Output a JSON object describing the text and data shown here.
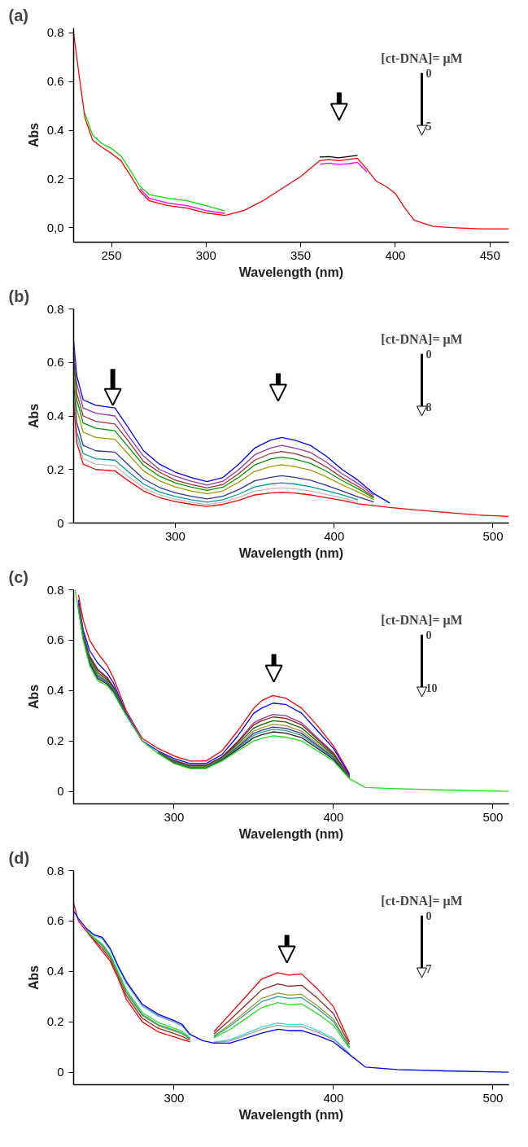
{
  "chart_data": [
    {
      "type": "line",
      "title": "(a)",
      "xlabel": "Wavelength (nm)",
      "ylabel": "Abs",
      "xlim": [
        230,
        460
      ],
      "ylim": [
        -0.06,
        0.82
      ],
      "xticks": [
        250,
        300,
        350,
        400,
        450
      ],
      "yticks": [
        {
          "value": 0,
          "label": "0,0"
        },
        0.2,
        0.4,
        0.6,
        0.8
      ],
      "grid": false,
      "marker": "none",
      "line_style": "solid",
      "annotations": [
        "[ct-DNA]= μM",
        "0",
        "5"
      ],
      "x": [
        230,
        233,
        236,
        240,
        245,
        250,
        255,
        260,
        265,
        270,
        280,
        290,
        300,
        310,
        320,
        330,
        340,
        350,
        360,
        365,
        370,
        375,
        380,
        385,
        390,
        395,
        400,
        405,
        410,
        420,
        430,
        445,
        460
      ],
      "series": [
        {
          "color": "#000000",
          "values": [
            null,
            null,
            null,
            null,
            null,
            null,
            null,
            null,
            null,
            null,
            null,
            null,
            null,
            null,
            null,
            null,
            null,
            null,
            0.29,
            0.292,
            0.287,
            0.292,
            0.297,
            null,
            null,
            null,
            null,
            null,
            null,
            null,
            null,
            null,
            null
          ]
        },
        {
          "color": "#ff00ff",
          "values": [
            null,
            null,
            null,
            null,
            null,
            null,
            null,
            null,
            0.16,
            0.12,
            0.1,
            0.09,
            0.07,
            0.058,
            null,
            null,
            null,
            null,
            0.26,
            0.265,
            0.26,
            0.262,
            0.268,
            0.228,
            null,
            null,
            null,
            null,
            null,
            null,
            null,
            null,
            null
          ]
        },
        {
          "color": "#00dd00",
          "values": [
            null,
            null,
            0.47,
            0.38,
            0.345,
            0.325,
            0.295,
            0.235,
            0.17,
            0.135,
            0.12,
            0.11,
            0.09,
            0.068,
            null,
            null,
            null,
            null,
            null,
            null,
            null,
            null,
            null,
            null,
            null,
            null,
            null,
            null,
            null,
            null,
            null,
            null,
            null
          ]
        },
        {
          "color": "#ff0000",
          "values": [
            0.8,
            0.62,
            0.45,
            0.36,
            0.33,
            0.305,
            0.275,
            0.215,
            0.15,
            0.11,
            0.09,
            0.08,
            0.06,
            0.05,
            0.07,
            0.11,
            0.16,
            0.21,
            0.275,
            0.28,
            0.275,
            0.28,
            0.285,
            0.24,
            0.19,
            0.17,
            0.14,
            0.08,
            0.03,
            0.005,
            0,
            -0.005,
            -0.005
          ]
        }
      ]
    },
    {
      "type": "line",
      "title": "(b)",
      "xlabel": "Wavelength (nm)",
      "ylabel": "Abs",
      "xlim": [
        236,
        510
      ],
      "ylim": [
        0,
        0.8
      ],
      "xticks": [
        300,
        400,
        500
      ],
      "yticks": [
        0,
        0.2,
        0.4,
        0.6,
        0.8
      ],
      "grid": false,
      "marker": "none",
      "line_style": "solid",
      "annotations": [
        "[ct-DNA]= μM",
        "0",
        "8"
      ],
      "x": [
        236,
        238,
        242,
        250,
        262,
        270,
        280,
        290,
        300,
        310,
        320,
        330,
        340,
        350,
        360,
        367,
        375,
        385,
        395,
        405,
        415,
        425,
        435,
        450,
        470,
        490,
        510
      ],
      "series": [
        {
          "color": "#0000ff",
          "values": [
            0.68,
            0.55,
            0.46,
            0.44,
            0.43,
            0.36,
            0.27,
            0.22,
            0.19,
            0.17,
            0.155,
            0.17,
            0.22,
            0.28,
            0.31,
            0.32,
            0.31,
            0.29,
            0.25,
            0.2,
            0.16,
            0.11,
            0.075,
            null,
            null,
            null,
            null
          ]
        },
        {
          "color": "#9933aa",
          "values": [
            0.65,
            0.52,
            0.43,
            0.41,
            0.4,
            0.33,
            0.25,
            0.2,
            0.175,
            0.156,
            0.142,
            0.156,
            0.2,
            0.255,
            0.28,
            0.29,
            0.28,
            0.264,
            0.228,
            0.184,
            0.148,
            0.104,
            null,
            null,
            null,
            null,
            null
          ]
        },
        {
          "color": "#993333",
          "values": [
            0.62,
            0.485,
            0.4,
            0.38,
            0.37,
            0.31,
            0.23,
            0.19,
            0.16,
            0.144,
            0.131,
            0.144,
            0.185,
            0.235,
            0.26,
            0.267,
            0.26,
            0.242,
            0.21,
            0.17,
            0.137,
            0.098,
            null,
            null,
            null,
            null,
            null
          ]
        },
        {
          "color": "#009900",
          "values": [
            0.6,
            0.46,
            0.374,
            0.354,
            0.345,
            0.288,
            0.216,
            0.175,
            0.15,
            0.134,
            0.122,
            0.134,
            0.171,
            0.217,
            0.239,
            0.246,
            0.239,
            0.223,
            0.194,
            0.159,
            0.128,
            0.094,
            null,
            null,
            null,
            null,
            null
          ]
        },
        {
          "color": "#999900",
          "values": [
            0.565,
            0.425,
            0.34,
            0.32,
            0.313,
            0.26,
            0.195,
            0.158,
            0.135,
            0.12,
            0.109,
            0.12,
            0.153,
            0.193,
            0.211,
            0.218,
            0.211,
            0.198,
            0.173,
            0.143,
            0.116,
            0.088,
            null,
            null,
            null,
            null,
            null
          ]
        },
        {
          "color": "#333399",
          "values": [
            0.52,
            0.375,
            0.29,
            0.27,
            0.265,
            0.22,
            0.165,
            0.133,
            0.113,
            0.1,
            0.09,
            0.1,
            0.125,
            0.158,
            0.171,
            0.177,
            0.171,
            0.16,
            0.141,
            0.12,
            0.098,
            0.079,
            null,
            null,
            null,
            null,
            null
          ]
        },
        {
          "color": "#009999",
          "values": [
            0.49,
            0.34,
            0.26,
            0.24,
            0.235,
            0.194,
            0.146,
            0.116,
            0.099,
            0.087,
            0.078,
            0.087,
            0.108,
            0.135,
            0.146,
            0.15,
            0.146,
            0.136,
            0.121,
            0.105,
            0.087,
            null,
            null,
            null,
            null,
            null,
            null
          ]
        },
        {
          "color": "#bbbbbb",
          "values": [
            0.47,
            0.32,
            0.24,
            0.22,
            0.214,
            0.176,
            0.132,
            0.105,
            0.089,
            0.078,
            0.069,
            0.078,
            0.096,
            0.119,
            0.128,
            0.131,
            0.128,
            0.12,
            0.107,
            0.094,
            0.079,
            null,
            null,
            null,
            null,
            null,
            null
          ]
        },
        {
          "color": "#ff0000",
          "values": [
            0.45,
            0.3,
            0.22,
            0.2,
            0.195,
            0.16,
            0.12,
            0.095,
            0.08,
            0.07,
            0.062,
            0.07,
            0.085,
            0.105,
            0.112,
            0.115,
            0.112,
            0.105,
            0.095,
            0.085,
            0.072,
            0.065,
            0.058,
            0.05,
            0.04,
            0.03,
            0.025
          ]
        }
      ]
    },
    {
      "type": "line",
      "title": "(c)",
      "xlabel": "Wavelength (nm)",
      "ylabel": "Abs",
      "xlim": [
        237,
        510
      ],
      "ylim": [
        -0.05,
        0.8
      ],
      "xticks": [
        300,
        400,
        500
      ],
      "yticks": [
        0,
        0.2,
        0.4,
        0.6,
        0.8
      ],
      "grid": false,
      "marker": "none",
      "line_style": "solid",
      "annotations": [
        "[ct-DNA]= μM",
        "0",
        "10"
      ],
      "x": [
        238,
        240,
        243,
        247,
        252,
        258,
        262,
        270,
        280,
        290,
        300,
        310,
        320,
        330,
        340,
        350,
        355,
        362,
        370,
        380,
        390,
        400,
        410,
        420,
        440,
        470,
        510
      ],
      "series": [
        {
          "color": "#ff0000",
          "values": [
            null,
            0.78,
            0.68,
            0.6,
            0.55,
            0.5,
            0.45,
            0.32,
            0.21,
            0.17,
            0.14,
            0.12,
            0.12,
            0.16,
            0.24,
            0.33,
            0.36,
            0.38,
            0.37,
            0.33,
            0.26,
            0.18,
            0.07,
            null,
            null,
            null,
            null
          ]
        },
        {
          "color": "#0000ff",
          "values": [
            null,
            0.76,
            0.64,
            0.56,
            0.51,
            0.47,
            0.43,
            0.31,
            0.2,
            0.16,
            0.13,
            0.11,
            0.11,
            0.145,
            0.22,
            0.31,
            0.33,
            0.35,
            0.345,
            0.31,
            0.24,
            0.17,
            0.065,
            null,
            null,
            null,
            null
          ]
        },
        {
          "color": "#993399",
          "values": [
            null,
            0.746,
            0.626,
            0.539,
            0.486,
            0.453,
            0.416,
            0.307,
            null,
            0.157,
            0.123,
            0.103,
            0.103,
            0.136,
            0.199,
            0.272,
            0.288,
            0.305,
            0.3,
            0.272,
            0.212,
            0.153,
            0.06,
            null,
            null,
            null,
            null
          ]
        },
        {
          "color": "#8b1a1a",
          "values": [
            null,
            0.743,
            0.623,
            0.535,
            0.481,
            0.449,
            0.413,
            0.306,
            null,
            0.156,
            0.122,
            0.102,
            0.102,
            0.135,
            0.195,
            0.264,
            0.28,
            0.295,
            0.29,
            0.264,
            0.206,
            0.149,
            0.059,
            null,
            null,
            null,
            null
          ]
        },
        {
          "color": "#006600",
          "values": [
            null,
            0.738,
            0.618,
            0.528,
            0.472,
            0.443,
            0.408,
            0.305,
            null,
            0.155,
            0.119,
            0.099,
            0.099,
            0.132,
            0.188,
            0.251,
            0.265,
            0.28,
            0.275,
            0.251,
            0.197,
            0.143,
            0.057,
            null,
            null,
            null,
            null
          ]
        },
        {
          "color": "#999933",
          "values": [
            null,
            0.734,
            0.614,
            0.521,
            0.465,
            0.438,
            0.404,
            0.304,
            null,
            0.154,
            0.117,
            0.097,
            0.097,
            0.129,
            0.181,
            0.239,
            0.252,
            0.266,
            0.261,
            0.239,
            0.188,
            0.138,
            0.055,
            null,
            null,
            null,
            null
          ]
        },
        {
          "color": "#333399",
          "values": [
            null,
            0.731,
            0.611,
            0.516,
            0.459,
            0.434,
            0.401,
            0.303,
            null,
            0.153,
            0.115,
            0.095,
            0.095,
            0.127,
            0.176,
            0.23,
            0.242,
            0.255,
            0.25,
            0.23,
            0.182,
            0.134,
            0.054,
            null,
            null,
            null,
            null
          ]
        },
        {
          "color": "#339999",
          "values": [
            null,
            0.728,
            0.608,
            0.512,
            0.454,
            0.43,
            0.398,
            0.302,
            null,
            0.152,
            0.114,
            0.094,
            0.094,
            0.125,
            0.172,
            0.222,
            0.234,
            0.246,
            0.241,
            0.222,
            0.176,
            0.13,
            0.053,
            null,
            null,
            null,
            null
          ]
        },
        {
          "color": "#222222",
          "values": [
            null,
            0.725,
            0.605,
            0.507,
            0.448,
            0.426,
            0.395,
            0.301,
            null,
            0.151,
            0.112,
            0.092,
            0.092,
            0.123,
            0.167,
            0.213,
            0.224,
            0.236,
            0.231,
            0.213,
            0.17,
            0.126,
            0.052,
            null,
            null,
            null,
            null
          ]
        },
        {
          "color": "#22dd22",
          "values": [
            0.8,
            0.72,
            0.6,
            0.5,
            0.44,
            0.42,
            0.39,
            0.3,
            0.2,
            0.15,
            0.11,
            0.09,
            0.09,
            0.12,
            0.16,
            0.2,
            0.21,
            0.22,
            0.215,
            0.2,
            0.16,
            0.12,
            0.05,
            0.015,
            0.01,
            0.005,
            0
          ]
        }
      ]
    },
    {
      "type": "line",
      "title": "(d)",
      "xlabel": "Wavelength (nm)",
      "ylabel": "Abs",
      "xlim": [
        237,
        510
      ],
      "ylim": [
        -0.05,
        0.8
      ],
      "xticks": [
        300,
        400,
        500
      ],
      "yticks": [
        0,
        0.2,
        0.4,
        0.6,
        0.8
      ],
      "grid": false,
      "marker": "none",
      "line_style": "solid",
      "annotations": [
        "[ct-DNA]= μM",
        "0",
        "7"
      ],
      "x": [
        237,
        240,
        245,
        250,
        255,
        260,
        265,
        270,
        280,
        290,
        300,
        305,
        310,
        318,
        325,
        335,
        345,
        355,
        365,
        372,
        380,
        390,
        400,
        410,
        420,
        440,
        470,
        510
      ],
      "series": [
        {
          "color": "#ff0000",
          "values": [
            0.67,
            0.6,
            0.56,
            0.52,
            0.48,
            0.44,
            0.37,
            0.29,
            0.2,
            0.16,
            0.14,
            0.13,
            0.12,
            null,
            0.16,
            0.23,
            0.3,
            0.37,
            0.395,
            0.385,
            0.39,
            0.33,
            0.26,
            0.12,
            null,
            null,
            null,
            null
          ]
        },
        {
          "color": "#8b2a2a",
          "values": [
            null,
            null,
            0.562,
            0.525,
            0.491,
            0.45,
            0.38,
            0.304,
            0.214,
            0.174,
            0.153,
            0.142,
            0.126,
            null,
            0.151,
            0.207,
            0.267,
            0.327,
            0.35,
            0.341,
            0.345,
            0.293,
            0.232,
            0.11,
            null,
            null,
            null,
            null
          ]
        },
        {
          "color": "#999933",
          "values": [
            null,
            null,
            0.564,
            0.529,
            0.5,
            0.458,
            0.388,
            0.315,
            0.225,
            0.185,
            0.163,
            0.152,
            0.131,
            null,
            0.144,
            0.189,
            0.241,
            0.293,
            0.314,
            0.306,
            0.309,
            0.263,
            0.21,
            0.102,
            null,
            null,
            null,
            null
          ]
        },
        {
          "color": "#339999",
          "values": [
            null,
            null,
            0.564,
            0.531,
            0.503,
            0.461,
            0.391,
            0.319,
            0.229,
            0.189,
            0.167,
            0.155,
            0.133,
            null,
            0.141,
            0.182,
            0.231,
            0.28,
            0.3,
            0.293,
            0.296,
            0.252,
            0.201,
            0.099,
            null,
            null,
            null,
            null
          ]
        },
        {
          "color": "#22dd22",
          "values": [
            null,
            null,
            0.565,
            0.533,
            0.509,
            0.467,
            0.397,
            0.327,
            0.237,
            0.197,
            0.174,
            0.162,
            0.136,
            null,
            0.136,
            0.169,
            0.213,
            0.256,
            0.276,
            0.268,
            0.271,
            0.232,
            0.186,
            0.094,
            null,
            null,
            null,
            null
          ]
        },
        {
          "color": "#33dddd",
          "values": [
            null,
            null,
            0.569,
            0.542,
            0.529,
            0.485,
            0.415,
            0.352,
            0.262,
            0.222,
            0.198,
            0.183,
            0.147,
            null,
            0.12,
            0.128,
            0.153,
            0.179,
            0.195,
            0.189,
            0.19,
            0.165,
            0.135,
            0.075,
            null,
            null,
            null,
            null
          ]
        },
        {
          "color": "#aa9999",
          "values": [
            null,
            null,
            0.569,
            0.543,
            0.531,
            0.487,
            null,
            0.355,
            0.265,
            0.225,
            0.2,
            0.186,
            0.148,
            null,
            0.118,
            0.123,
            0.147,
            0.17,
            0.186,
            0.18,
            0.181,
            0.158,
            0.13,
            0.073,
            null,
            null,
            null,
            null
          ]
        },
        {
          "color": "#0000ff",
          "values": [
            0.64,
            0.61,
            0.57,
            0.545,
            0.535,
            0.49,
            0.42,
            0.36,
            0.27,
            0.23,
            0.205,
            0.19,
            0.15,
            0.125,
            0.115,
            0.115,
            0.135,
            0.155,
            0.17,
            0.165,
            0.165,
            0.145,
            0.12,
            0.07,
            0.02,
            0.01,
            0.005,
            0
          ]
        }
      ]
    }
  ]
}
